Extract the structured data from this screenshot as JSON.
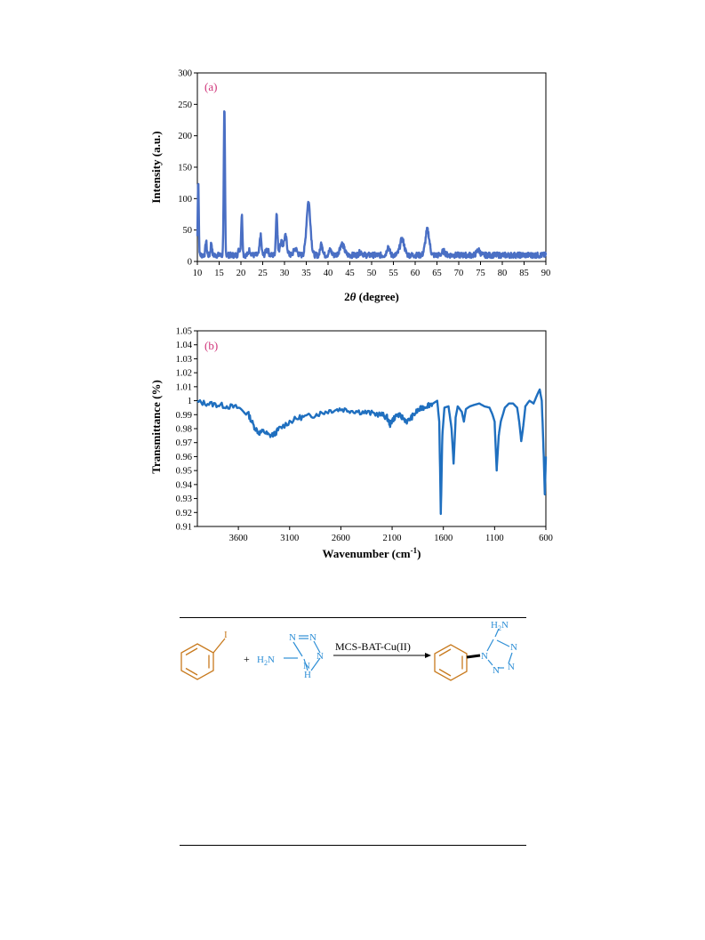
{
  "chart_data": [
    {
      "panel": "(a)",
      "type": "line",
      "xlabel": "2θ (degree)",
      "ylabel": "Intensity (a.u.)",
      "xlim": [
        10,
        90
      ],
      "ylim": [
        0,
        300
      ],
      "x_ticks": [
        10,
        15,
        20,
        25,
        30,
        35,
        40,
        45,
        50,
        55,
        60,
        65,
        70,
        75,
        80,
        85,
        90
      ],
      "y_ticks": [
        0,
        50,
        100,
        150,
        200,
        250,
        300
      ],
      "grid": false,
      "color": "#4a6fc4",
      "baseline": 10,
      "peaks": [
        {
          "x": 10.2,
          "y": 132,
          "w": 0.12
        },
        {
          "x": 12.0,
          "y": 32,
          "w": 0.15
        },
        {
          "x": 13.2,
          "y": 30,
          "w": 0.15
        },
        {
          "x": 16.2,
          "y": 245,
          "w": 0.14
        },
        {
          "x": 19.6,
          "y": 20,
          "w": 0.2
        },
        {
          "x": 20.2,
          "y": 74,
          "w": 0.15
        },
        {
          "x": 22.0,
          "y": 18,
          "w": 0.25
        },
        {
          "x": 24.5,
          "y": 42,
          "w": 0.2
        },
        {
          "x": 26.0,
          "y": 20,
          "w": 0.3
        },
        {
          "x": 28.2,
          "y": 77,
          "w": 0.18
        },
        {
          "x": 29.2,
          "y": 32,
          "w": 0.3
        },
        {
          "x": 30.2,
          "y": 40,
          "w": 0.35
        },
        {
          "x": 32.5,
          "y": 20,
          "w": 0.4
        },
        {
          "x": 35.5,
          "y": 95,
          "w": 0.45
        },
        {
          "x": 38.5,
          "y": 30,
          "w": 0.25
        },
        {
          "x": 40.5,
          "y": 18,
          "w": 0.3
        },
        {
          "x": 43.2,
          "y": 28,
          "w": 0.5
        },
        {
          "x": 47.5,
          "y": 15,
          "w": 0.4
        },
        {
          "x": 53.8,
          "y": 24,
          "w": 0.3
        },
        {
          "x": 57.0,
          "y": 35,
          "w": 0.5
        },
        {
          "x": 62.8,
          "y": 50,
          "w": 0.45
        },
        {
          "x": 66.5,
          "y": 16,
          "w": 0.4
        },
        {
          "x": 74.5,
          "y": 18,
          "w": 0.4
        }
      ]
    },
    {
      "panel": "(b)",
      "type": "line",
      "xlabel": "Wavenumber (cm-1)",
      "xlabel_main": "Wavenumber (cm",
      "xlabel_sup": "-1",
      "xlabel_close": ")",
      "ylabel": "Transmittance (%)",
      "xlim": [
        4000,
        600
      ],
      "ylim": [
        0.91,
        1.05
      ],
      "x_ticks": [
        3600,
        3100,
        2600,
        2100,
        1600,
        1100,
        600
      ],
      "y_ticks": [
        "0.91",
        "0.92",
        "0.93",
        "0.94",
        "0.95",
        "0.96",
        "0.97",
        "0.98",
        "0.99",
        "1",
        "1.01",
        "1.02",
        "1.03",
        "1.04",
        "1.05"
      ],
      "grid": false,
      "color": "#1f6fbf",
      "points": [
        [
          4000,
          0.999
        ],
        [
          3900,
          0.998
        ],
        [
          3800,
          0.997
        ],
        [
          3700,
          0.996
        ],
        [
          3600,
          0.995
        ],
        [
          3500,
          0.99
        ],
        [
          3450,
          0.982
        ],
        [
          3400,
          0.977
        ],
        [
          3350,
          0.978
        ],
        [
          3300,
          0.975
        ],
        [
          3250,
          0.976
        ],
        [
          3200,
          0.98
        ],
        [
          3100,
          0.985
        ],
        [
          3000,
          0.988
        ],
        [
          2900,
          0.989
        ],
        [
          2800,
          0.991
        ],
        [
          2700,
          0.993
        ],
        [
          2600,
          0.994
        ],
        [
          2500,
          0.993
        ],
        [
          2400,
          0.992
        ],
        [
          2300,
          0.991
        ],
        [
          2200,
          0.99
        ],
        [
          2150,
          0.988
        ],
        [
          2120,
          0.983
        ],
        [
          2100,
          0.986
        ],
        [
          2050,
          0.99
        ],
        [
          2000,
          0.988
        ],
        [
          1950,
          0.985
        ],
        [
          1900,
          0.989
        ],
        [
          1850,
          0.993
        ],
        [
          1800,
          0.995
        ],
        [
          1750,
          0.997
        ],
        [
          1700,
          0.998
        ],
        [
          1660,
          1.0
        ],
        [
          1640,
          0.985
        ],
        [
          1625,
          0.919
        ],
        [
          1610,
          0.975
        ],
        [
          1590,
          0.995
        ],
        [
          1550,
          0.996
        ],
        [
          1520,
          0.98
        ],
        [
          1500,
          0.955
        ],
        [
          1480,
          0.988
        ],
        [
          1460,
          0.996
        ],
        [
          1420,
          0.992
        ],
        [
          1400,
          0.985
        ],
        [
          1380,
          0.994
        ],
        [
          1340,
          0.996
        ],
        [
          1300,
          0.997
        ],
        [
          1250,
          0.998
        ],
        [
          1200,
          0.996
        ],
        [
          1150,
          0.995
        ],
        [
          1120,
          0.99
        ],
        [
          1100,
          0.985
        ],
        [
          1080,
          0.95
        ],
        [
          1060,
          0.975
        ],
        [
          1040,
          0.985
        ],
        [
          1000,
          0.995
        ],
        [
          960,
          0.998
        ],
        [
          920,
          0.998
        ],
        [
          880,
          0.995
        ],
        [
          860,
          0.985
        ],
        [
          840,
          0.971
        ],
        [
          820,
          0.982
        ],
        [
          800,
          0.996
        ],
        [
          760,
          1.0
        ],
        [
          720,
          0.998
        ],
        [
          680,
          1.005
        ],
        [
          660,
          1.008
        ],
        [
          640,
          1.0
        ],
        [
          625,
          0.97
        ],
        [
          610,
          0.933
        ],
        [
          600,
          0.96
        ]
      ]
    }
  ],
  "scheme": {
    "iodine": "I",
    "plus": "+",
    "amine_label": "H2N",
    "nh_label": "H",
    "n_label": "N",
    "reagent": "MCS-BAT-Cu(II)",
    "colors": {
      "orange": "#c87a1e",
      "blue": "#2f8fd6"
    }
  }
}
